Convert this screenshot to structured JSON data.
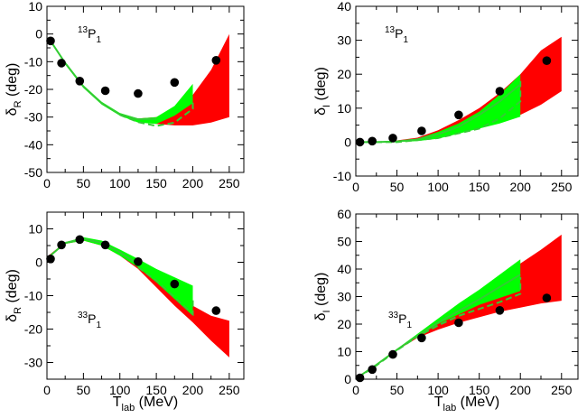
{
  "colors": {
    "red_band": "#ff0000",
    "green_band": "#00ff00",
    "curve": "#33cc33",
    "points": "#000000"
  },
  "chart_data": [
    {
      "type": "line",
      "panel": "top-left",
      "partial_wave": {
        "sup": "13",
        "letter": "P",
        "sub": "1"
      },
      "xlabel": {
        "main": "",
        "sub": "",
        "unit": ""
      },
      "ylabel": {
        "main": "δ",
        "sub": "R",
        "unit": " (deg)"
      },
      "xlim": [
        0,
        270
      ],
      "ylim": [
        -50,
        10
      ],
      "xticks": [
        0,
        50,
        100,
        150,
        200,
        250
      ],
      "yticks": [
        -50,
        -40,
        -30,
        -20,
        -10,
        0,
        10
      ],
      "points": {
        "x": [
          5,
          20,
          45,
          80,
          125,
          175,
          232
        ],
        "y": [
          -2.5,
          -10.5,
          -17,
          -20.5,
          -21.5,
          -17.5,
          -9.5
        ]
      },
      "red_band": {
        "x": [
          100,
          125,
          150,
          175,
          200,
          225,
          250
        ],
        "lower": [
          -29.5,
          -31.5,
          -32.5,
          -33,
          -33,
          -32,
          -30
        ],
        "upper": [
          -29.5,
          -30.5,
          -30,
          -26.5,
          -22,
          -13,
          0
        ]
      },
      "green_band": {
        "x": [
          2,
          25,
          50,
          75,
          100,
          125,
          150,
          175,
          200
        ],
        "lower": [
          -1.5,
          -11,
          -19.5,
          -25.5,
          -29.5,
          -32,
          -32.5,
          -29.5,
          -25
        ],
        "upper": [
          -1,
          -10,
          -18.5,
          -24.5,
          -28.5,
          -30.5,
          -30,
          -26,
          -18
        ]
      },
      "solid_line": {
        "x": [
          2,
          25,
          50,
          75,
          100,
          125,
          150
        ],
        "y": [
          -1.3,
          -10.5,
          -19,
          -25,
          -29,
          -30.8,
          -30.6
        ]
      },
      "dashed_line": {
        "x": [
          100,
          125,
          150,
          175,
          200,
          200
        ],
        "y": [
          -29.2,
          -31.8,
          -33.2,
          -32,
          -27,
          -24
        ]
      }
    },
    {
      "type": "line",
      "panel": "top-right",
      "partial_wave": {
        "sup": "13",
        "letter": "P",
        "sub": "1"
      },
      "xlabel": {
        "main": "",
        "sub": "",
        "unit": ""
      },
      "ylabel": {
        "main": "δ",
        "sub": "I",
        "unit": " (deg)"
      },
      "xlim": [
        0,
        270
      ],
      "ylim": [
        -10,
        40
      ],
      "xticks": [
        0,
        50,
        100,
        150,
        200,
        250
      ],
      "yticks": [
        -10,
        0,
        10,
        20,
        30,
        40
      ],
      "points": {
        "x": [
          5,
          20,
          45,
          80,
          125,
          175,
          232
        ],
        "y": [
          0,
          0.3,
          1.2,
          3.3,
          8,
          15,
          24
        ]
      },
      "red_band": {
        "x": [
          0,
          25,
          50,
          75,
          100,
          125,
          150,
          175,
          200,
          225,
          250
        ],
        "lower": [
          0,
          0,
          0.1,
          0.5,
          1.5,
          3,
          4.5,
          6,
          8,
          11,
          15
        ],
        "upper": [
          0,
          0.1,
          0.5,
          1.3,
          3.5,
          6.5,
          10,
          14.5,
          20,
          27,
          31
        ]
      },
      "green_band": {
        "x": [
          0,
          25,
          50,
          75,
          100,
          125,
          150,
          175,
          200
        ],
        "lower": [
          0,
          0,
          0,
          0.3,
          1,
          2.5,
          4,
          5.5,
          7.5
        ],
        "upper": [
          0,
          0,
          0.3,
          1,
          3,
          5.5,
          9,
          14,
          20
        ]
      },
      "solid_line": {
        "x": [
          0,
          25,
          50,
          75,
          100,
          125,
          150,
          175,
          200
        ],
        "y": [
          0,
          0,
          0.2,
          0.8,
          2.3,
          4.5,
          8,
          12,
          17
        ]
      },
      "dashed_line": {
        "x": [
          0,
          50,
          100,
          150,
          175,
          200,
          200
        ],
        "y": [
          0,
          0,
          1.2,
          4,
          7,
          12,
          18
        ]
      }
    },
    {
      "type": "line",
      "panel": "bottom-left",
      "partial_wave": {
        "sup": "33",
        "letter": "P",
        "sub": "1"
      },
      "xlabel": {
        "main": "T",
        "sub": "lab",
        "unit": " (MeV)"
      },
      "ylabel": {
        "main": "δ",
        "sub": "R",
        "unit": " (deg)"
      },
      "xlim": [
        0,
        270
      ],
      "ylim": [
        -35,
        15
      ],
      "xticks": [
        0,
        50,
        100,
        150,
        200,
        250
      ],
      "yticks": [
        -30,
        -20,
        -10,
        0,
        10
      ],
      "points": {
        "x": [
          5,
          20,
          45,
          80,
          125,
          175,
          232
        ],
        "y": [
          1,
          5.2,
          6.8,
          5.2,
          0.2,
          -6.5,
          -14.5
        ]
      },
      "red_band": {
        "x": [
          2,
          25,
          50,
          75,
          100,
          125,
          150,
          175,
          200,
          225,
          250
        ],
        "lower": [
          1.5,
          5.5,
          6.5,
          5,
          2,
          -2,
          -7.5,
          -13,
          -18,
          -23.5,
          -28.5
        ],
        "upper": [
          2,
          6,
          7.4,
          6,
          3,
          -0.5,
          -4.5,
          -9,
          -13,
          -16,
          -17.5
        ]
      },
      "green_band": {
        "x": [
          2,
          25,
          50,
          75,
          100,
          125,
          150,
          175,
          200
        ],
        "lower": [
          1.3,
          5.5,
          6.5,
          5,
          2,
          -1.5,
          -6,
          -11,
          -16
        ],
        "upper": [
          1.8,
          6,
          7.5,
          6.5,
          3.8,
          1,
          -2,
          -4.5,
          -7
        ]
      },
      "solid_line": {
        "x": [
          2,
          25,
          50,
          75,
          100,
          125
        ],
        "y": [
          1.5,
          5.8,
          7,
          5.8,
          3,
          -0.5
        ]
      },
      "dashed_line": {
        "x": [
          125,
          150,
          175,
          200,
          200
        ],
        "y": [
          -1.5,
          -5.5,
          -10.5,
          -15.5,
          -10.5
        ]
      }
    },
    {
      "type": "line",
      "panel": "bottom-right",
      "partial_wave": {
        "sup": "33",
        "letter": "P",
        "sub": "1"
      },
      "xlabel": {
        "main": "T",
        "sub": "lab",
        "unit": " (MeV)"
      },
      "ylabel": {
        "main": "δ",
        "sub": "I",
        "unit": " (deg)"
      },
      "xlim": [
        0,
        270
      ],
      "ylim": [
        0,
        60
      ],
      "xticks": [
        0,
        50,
        100,
        150,
        200,
        250
      ],
      "yticks": [
        0,
        10,
        20,
        30,
        40,
        50,
        60
      ],
      "points": {
        "x": [
          5,
          20,
          45,
          80,
          125,
          175,
          232
        ],
        "y": [
          0.5,
          3.5,
          9,
          15,
          20.5,
          25,
          29.5
        ]
      },
      "red_band": {
        "x": [
          2,
          25,
          50,
          75,
          100,
          125,
          150,
          175,
          200,
          225,
          250
        ],
        "lower": [
          0.5,
          5,
          10.5,
          15,
          18,
          20.5,
          22.5,
          24.5,
          26,
          27.5,
          28.5
        ],
        "upper": [
          0.8,
          5.5,
          11,
          16,
          21,
          26,
          31.5,
          37,
          42,
          47,
          52.5
        ]
      },
      "green_band": {
        "x": [
          2,
          25,
          50,
          75,
          100,
          125,
          150,
          175,
          200
        ],
        "lower": [
          0.5,
          5,
          10.5,
          15.5,
          20,
          23.5,
          27,
          29.5,
          32
        ],
        "upper": [
          0.8,
          5.5,
          11,
          16.5,
          22,
          27.5,
          32.5,
          38,
          43.5
        ]
      },
      "solid_line": {
        "x": [
          2,
          25,
          50,
          75,
          100,
          125,
          150,
          175,
          200
        ],
        "y": [
          0.6,
          5.2,
          10.7,
          15.8,
          20.5,
          24.8,
          29,
          33.5,
          38
        ]
      },
      "dashed_line": {
        "x": [
          2,
          25,
          50,
          75,
          100,
          125,
          150,
          175,
          200,
          200
        ],
        "y": [
          0.5,
          5,
          10.5,
          15.5,
          19.5,
          23,
          25.5,
          28,
          31,
          37
        ]
      }
    }
  ]
}
